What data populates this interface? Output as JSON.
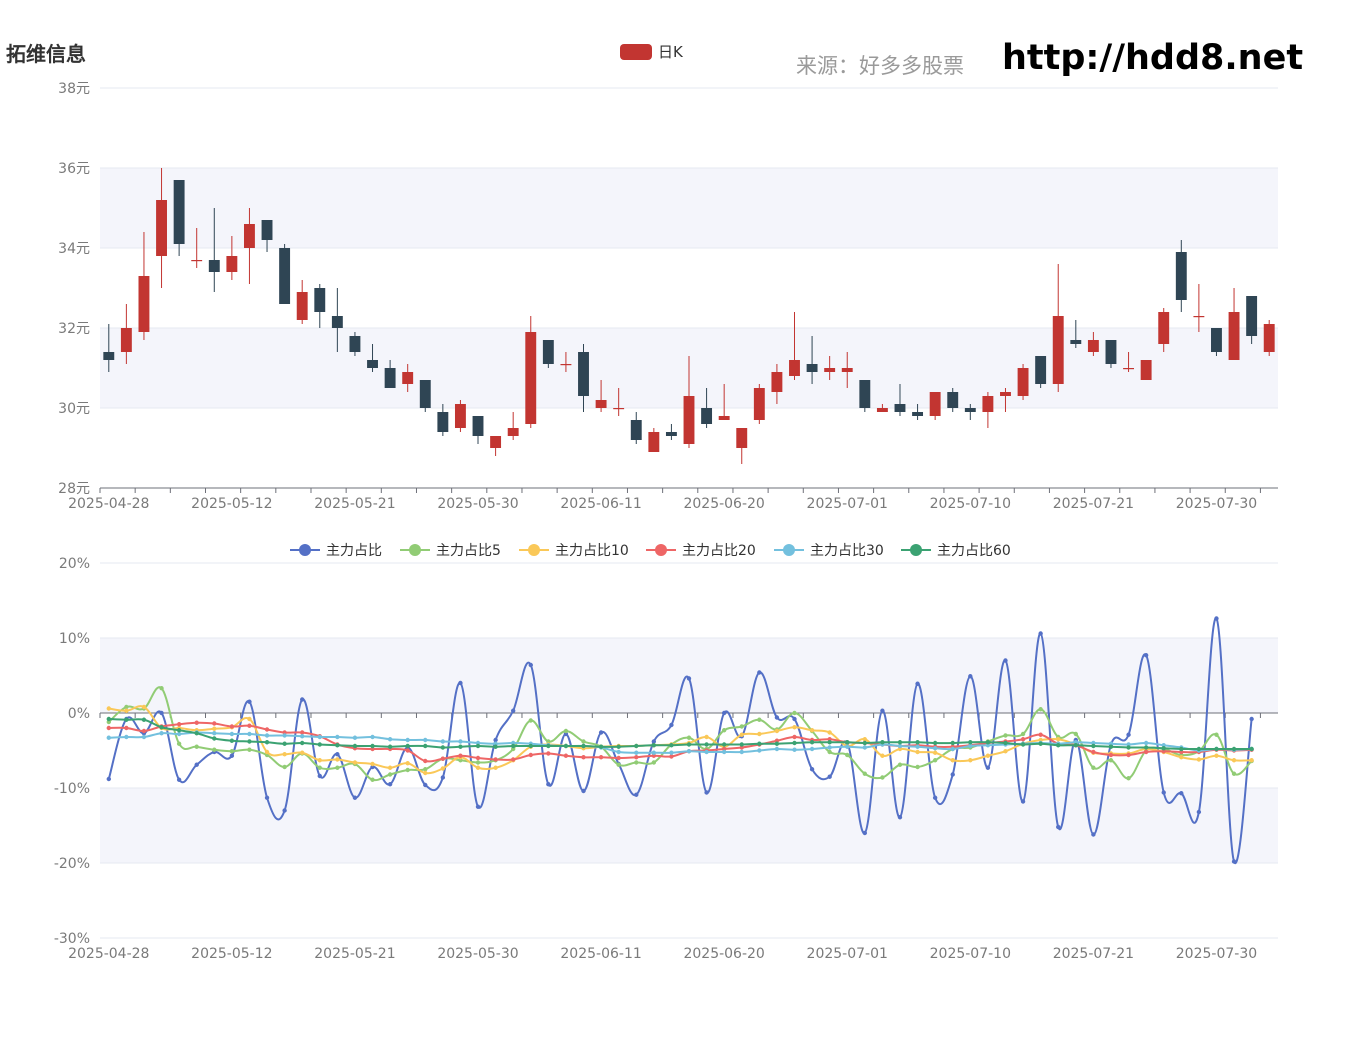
{
  "header": {
    "title": "拓维信息",
    "source": "来源：好多多股票",
    "site": "http://hdd8.net"
  },
  "colors": {
    "up": "#c23531",
    "down": "#2f4554",
    "band": "#f4f5fb",
    "grid": "#e6e9f2",
    "axis": "#6e7079",
    "label": "#7a7a7a"
  },
  "chart_data": [
    {
      "type": "candlestick",
      "legend": [
        "日K"
      ],
      "ylim": [
        28,
        38
      ],
      "y_ticks": [
        "28元",
        "30元",
        "32元",
        "34元",
        "36元",
        "38元"
      ],
      "x_tick_labels": [
        "2025-04-28",
        "2025-05-12",
        "2025-05-21",
        "2025-05-30",
        "2025-06-11",
        "2025-06-20",
        "2025-07-01",
        "2025-07-10",
        "2025-07-21",
        "2025-07-30"
      ],
      "candles": [
        [
          31.4,
          31.2,
          32.1,
          30.9
        ],
        [
          31.4,
          32.0,
          32.6,
          31.1
        ],
        [
          31.9,
          33.3,
          34.4,
          31.7
        ],
        [
          33.8,
          35.2,
          36.0,
          33.0
        ],
        [
          35.7,
          34.1,
          35.7,
          33.8
        ],
        [
          33.7,
          33.7,
          34.5,
          33.5
        ],
        [
          33.7,
          33.4,
          35.0,
          32.9
        ],
        [
          33.4,
          33.8,
          34.3,
          33.2
        ],
        [
          34.0,
          34.6,
          35.0,
          33.1
        ],
        [
          34.7,
          34.2,
          34.7,
          33.9
        ],
        [
          34.0,
          32.6,
          34.1,
          32.6
        ],
        [
          32.2,
          32.9,
          33.2,
          32.1
        ],
        [
          33.0,
          32.4,
          33.1,
          32.0
        ],
        [
          32.3,
          32.0,
          33.0,
          31.4
        ],
        [
          31.8,
          31.4,
          31.9,
          31.3
        ],
        [
          31.2,
          31.0,
          31.6,
          30.9
        ],
        [
          31.0,
          30.5,
          31.2,
          30.5
        ],
        [
          30.6,
          30.9,
          31.1,
          30.4
        ],
        [
          30.7,
          30.0,
          30.7,
          29.9
        ],
        [
          29.9,
          29.4,
          30.1,
          29.3
        ],
        [
          29.5,
          30.1,
          30.2,
          29.4
        ],
        [
          29.8,
          29.3,
          29.8,
          29.1
        ],
        [
          29.0,
          29.3,
          29.3,
          28.8
        ],
        [
          29.3,
          29.5,
          29.9,
          29.2
        ],
        [
          29.6,
          31.9,
          32.3,
          29.5
        ],
        [
          31.7,
          31.1,
          31.7,
          31.0
        ],
        [
          31.1,
          31.1,
          31.4,
          30.9
        ],
        [
          31.4,
          30.3,
          31.6,
          29.9
        ],
        [
          30.0,
          30.2,
          30.7,
          29.9
        ],
        [
          30.0,
          30.0,
          30.5,
          29.8
        ],
        [
          29.7,
          29.2,
          29.9,
          29.1
        ],
        [
          28.9,
          29.4,
          29.5,
          28.9
        ],
        [
          29.4,
          29.3,
          29.6,
          29.2
        ],
        [
          29.1,
          30.3,
          31.3,
          29.0
        ],
        [
          30.0,
          29.6,
          30.5,
          29.5
        ],
        [
          29.7,
          29.8,
          30.6,
          29.7
        ],
        [
          29.0,
          29.5,
          29.5,
          28.6
        ],
        [
          29.7,
          30.5,
          30.6,
          29.6
        ],
        [
          30.4,
          30.9,
          31.1,
          30.1
        ],
        [
          30.8,
          31.2,
          32.4,
          30.7
        ],
        [
          31.1,
          30.9,
          31.8,
          30.6
        ],
        [
          30.9,
          31.0,
          31.3,
          30.7
        ],
        [
          30.9,
          31.0,
          31.4,
          30.5
        ],
        [
          30.7,
          30.0,
          30.7,
          29.9
        ],
        [
          29.9,
          30.0,
          30.1,
          29.9
        ],
        [
          30.1,
          29.9,
          30.6,
          29.8
        ],
        [
          29.9,
          29.8,
          30.1,
          29.7
        ],
        [
          29.8,
          30.4,
          30.4,
          29.7
        ],
        [
          30.4,
          30.0,
          30.5,
          29.9
        ],
        [
          30.0,
          29.9,
          30.1,
          29.7
        ],
        [
          29.9,
          30.3,
          30.4,
          29.5
        ],
        [
          30.3,
          30.4,
          30.5,
          29.9
        ],
        [
          30.3,
          31.0,
          31.1,
          30.2
        ],
        [
          31.3,
          30.6,
          31.3,
          30.5
        ],
        [
          30.6,
          32.3,
          33.6,
          30.4
        ],
        [
          31.7,
          31.6,
          32.2,
          31.5
        ],
        [
          31.4,
          31.7,
          31.9,
          31.3
        ],
        [
          31.7,
          31.1,
          31.7,
          31.0
        ],
        [
          31.0,
          31.0,
          31.4,
          30.9
        ],
        [
          30.7,
          31.2,
          31.2,
          30.7
        ],
        [
          31.6,
          32.4,
          32.5,
          31.4
        ],
        [
          33.9,
          32.7,
          34.2,
          32.4
        ],
        [
          32.3,
          32.3,
          33.1,
          31.9
        ],
        [
          32.0,
          31.4,
          32.0,
          31.3
        ],
        [
          31.2,
          32.4,
          33.0,
          31.2
        ],
        [
          32.8,
          31.8,
          32.8,
          31.6
        ],
        [
          31.4,
          32.1,
          32.2,
          31.3
        ]
      ]
    },
    {
      "type": "line",
      "legend": [
        "主力占比",
        "主力占比5",
        "主力占比10",
        "主力占比20",
        "主力占比30",
        "主力占比60"
      ],
      "ylim": [
        -30,
        20
      ],
      "y_ticks": [
        "-30%",
        "-20%",
        "-10%",
        "0%",
        "10%",
        "20%"
      ],
      "x_tick_labels": [
        "2025-04-28",
        "2025-05-12",
        "2025-05-21",
        "2025-05-30",
        "2025-06-11",
        "2025-06-20",
        "2025-07-01",
        "2025-07-10",
        "2025-07-21",
        "2025-07-30"
      ],
      "series": [
        {
          "name": "主力占比",
          "color": "#5470c6",
          "values": [
            -8.8,
            -0.8,
            -2.7,
            0.0,
            -8.9,
            -6.9,
            -5.2,
            -5.7,
            1.5,
            -11.3,
            -13.0,
            1.8,
            -8.4,
            -5.5,
            -11.3,
            -7.2,
            -9.5,
            -4.6,
            -9.6,
            -8.6,
            4.0,
            -12.5,
            -3.6,
            0.3,
            6.4,
            -9.5,
            -2.8,
            -10.4,
            -2.6,
            -6.8,
            -10.9,
            -3.8,
            -1.6,
            4.6,
            -10.6,
            0.0,
            -3.1,
            5.4,
            -0.6,
            -0.8,
            -7.5,
            -8.5,
            -4.0,
            -16.0,
            0.3,
            -13.9,
            3.9,
            -11.3,
            -8.2,
            4.9,
            -7.3,
            7.0,
            -11.8,
            10.6,
            -15.2,
            -3.6,
            -16.2,
            -4.2,
            -2.9,
            7.7,
            -10.6,
            -10.7,
            -13.2,
            12.6,
            -19.8,
            -0.8
          ]
        },
        {
          "name": "主力占比5",
          "color": "#91cc75",
          "values": [
            -1.2,
            0.8,
            0.6,
            3.3,
            -4.1,
            -4.5,
            -4.9,
            -5.1,
            -4.9,
            -5.6,
            -7.2,
            -5.4,
            -7.3,
            -7.3,
            -6.8,
            -8.9,
            -8.2,
            -7.6,
            -7.5,
            -6.1,
            -6.3,
            -6.6,
            -6.3,
            -4.8,
            -1.0,
            -3.8,
            -2.4,
            -3.8,
            -4.5,
            -6.9,
            -6.6,
            -6.6,
            -4.2,
            -3.3,
            -4.8,
            -2.3,
            -1.8,
            -0.9,
            -2.2,
            0.0,
            -2.4,
            -5.2,
            -5.6,
            -8.1,
            -8.6,
            -6.9,
            -7.2,
            -6.3,
            -4.8,
            -4.6,
            -3.8,
            -3.0,
            -2.8,
            0.5,
            -3.2,
            -2.8,
            -7.3,
            -6.3,
            -8.7,
            -5.0,
            -4.8,
            -5.6,
            -5.1,
            -2.9,
            -8.1,
            -6.4
          ]
        },
        {
          "name": "主力占比10",
          "color": "#fac858",
          "values": [
            0.6,
            0.3,
            0.8,
            -2.0,
            -2.0,
            -2.3,
            -2.1,
            -1.9,
            -0.8,
            -5.2,
            -5.5,
            -5.3,
            -6.3,
            -6.2,
            -6.6,
            -6.8,
            -7.3,
            -6.7,
            -8.0,
            -7.4,
            -5.9,
            -7.3,
            -7.3,
            -6.3,
            -4.5,
            -4.2,
            -4.4,
            -4.7,
            -4.5,
            -4.4,
            -4.4,
            -4.3,
            -4.2,
            -4.0,
            -3.2,
            -4.5,
            -2.9,
            -2.8,
            -2.4,
            -1.9,
            -2.3,
            -2.6,
            -4.4,
            -3.5,
            -5.7,
            -4.8,
            -5.2,
            -5.3,
            -6.3,
            -6.3,
            -5.7,
            -5.1,
            -4.1,
            -3.6,
            -3.5,
            -4.2,
            -5.3,
            -5.4,
            -5.4,
            -4.8,
            -5.2,
            -5.9,
            -6.2,
            -5.7,
            -6.3,
            -6.3
          ]
        },
        {
          "name": "主力占比20",
          "color": "#ee6666",
          "values": [
            -2.0,
            -2.0,
            -2.4,
            -1.8,
            -1.5,
            -1.3,
            -1.4,
            -1.8,
            -1.7,
            -2.2,
            -2.6,
            -2.6,
            -3.1,
            -4.2,
            -4.7,
            -4.8,
            -4.8,
            -5.0,
            -6.4,
            -6.1,
            -5.7,
            -6.0,
            -6.2,
            -6.2,
            -5.6,
            -5.4,
            -5.7,
            -5.9,
            -5.9,
            -6.0,
            -5.9,
            -5.7,
            -5.8,
            -5.1,
            -5.0,
            -4.8,
            -4.6,
            -4.2,
            -3.7,
            -3.2,
            -3.6,
            -3.5,
            -3.9,
            -4.0,
            -4.2,
            -4.4,
            -4.3,
            -4.5,
            -4.5,
            -4.3,
            -4.0,
            -3.8,
            -3.5,
            -2.9,
            -4.1,
            -4.3,
            -5.2,
            -5.6,
            -5.6,
            -5.2,
            -5.1,
            -5.2,
            -5.2,
            -4.9,
            -5.0,
            -4.9
          ]
        },
        {
          "name": "主力占比30",
          "color": "#73c0de",
          "values": [
            -3.3,
            -3.2,
            -3.2,
            -2.7,
            -2.8,
            -2.6,
            -2.7,
            -2.8,
            -2.8,
            -3.0,
            -3.0,
            -3.1,
            -3.2,
            -3.2,
            -3.3,
            -3.2,
            -3.5,
            -3.6,
            -3.6,
            -3.8,
            -3.8,
            -4.0,
            -4.1,
            -4.0,
            -4.1,
            -4.3,
            -4.4,
            -4.4,
            -4.6,
            -5.2,
            -5.3,
            -5.3,
            -5.3,
            -5.1,
            -5.2,
            -5.2,
            -5.2,
            -5.0,
            -4.8,
            -4.9,
            -4.8,
            -4.6,
            -4.5,
            -4.6,
            -4.2,
            -4.4,
            -4.5,
            -4.7,
            -4.8,
            -4.4,
            -4.3,
            -4.2,
            -4.1,
            -4.0,
            -4.1,
            -3.9,
            -4.0,
            -4.1,
            -4.2,
            -4.0,
            -4.3,
            -4.6,
            -5.0,
            -4.8,
            -4.9,
            -4.8
          ]
        },
        {
          "name": "主力占比60",
          "color": "#3ba272",
          "values": [
            -0.8,
            -0.9,
            -0.9,
            -1.9,
            -2.3,
            -2.7,
            -3.4,
            -3.7,
            -3.8,
            -3.9,
            -4.1,
            -4.0,
            -4.2,
            -4.3,
            -4.4,
            -4.4,
            -4.5,
            -4.4,
            -4.4,
            -4.6,
            -4.5,
            -4.4,
            -4.5,
            -4.4,
            -4.4,
            -4.4,
            -4.4,
            -4.4,
            -4.5,
            -4.5,
            -4.4,
            -4.3,
            -4.3,
            -4.2,
            -4.2,
            -4.2,
            -4.2,
            -4.1,
            -4.1,
            -4.0,
            -3.9,
            -3.9,
            -3.9,
            -4.0,
            -3.9,
            -3.9,
            -3.9,
            -4.0,
            -4.0,
            -3.9,
            -3.9,
            -4.0,
            -4.2,
            -4.1,
            -4.3,
            -4.3,
            -4.4,
            -4.5,
            -4.6,
            -4.6,
            -4.7,
            -4.8,
            -4.8,
            -4.8,
            -4.8,
            -4.8
          ]
        }
      ]
    }
  ]
}
